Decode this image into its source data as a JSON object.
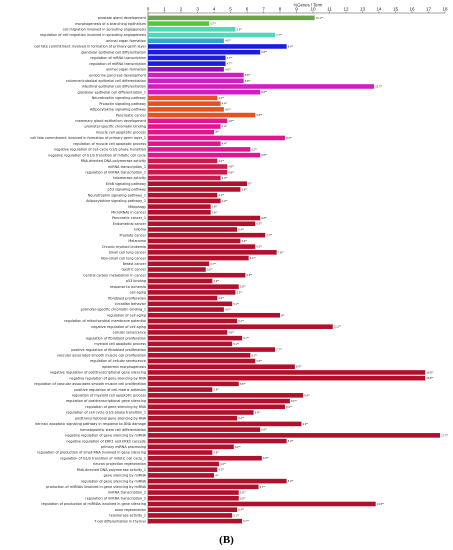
{
  "panel_label": "(B)",
  "chart_data": {
    "type": "bar",
    "orientation": "horizontal",
    "xlabel": "%Genes / Term",
    "xlim": [
      0,
      18
    ],
    "xticks": [
      0,
      1,
      2,
      3,
      4,
      5,
      6,
      7,
      8,
      9,
      10,
      11,
      12,
      13,
      14,
      15,
      16,
      17,
      18
    ],
    "grid": false,
    "legend": "none",
    "value_suffix": "**",
    "categories": [
      "prostate gland development",
      "morphogenesis of a branching epithelium",
      "cell migration involved in sprouting angiogenesis",
      "regulation of cell migration involved in sprouting angiogenesis",
      "animal organ formation",
      "cell fate commitment involved in formation of primary germ layer",
      "glandular epithelial cell differentiation",
      "regulation of mRNA transcription",
      "regulation of miRNA transcription",
      "animal organ formation",
      "endocrine pancreas development",
      "columnar/cuboidal epithelial cell differentiation",
      "intestinal epithelial cell differentiation",
      "glandular epithelial cell differentiation_1",
      "Neurotrophin signaling pathway",
      "Prolactin signaling pathway",
      "Adipocytokine signaling pathway",
      "Pancreatic cancer",
      "mammary gland epithelium development",
      "promoter-specific chromatin binding",
      "muscle cell apoptotic process",
      "cell fate commitment involved in formation of primary germ layer_1",
      "regulation of muscle cell apoptotic process",
      "negative regulation of cell cycle G1/S phase transition",
      "negative regulation of G1/S transition of mitotic cell cycle",
      "RNA-directed DNA polymerase activity",
      "miRNA transcription_1",
      "regulation of miRNA transcription_1",
      "telomerase activity",
      "ErbB signaling pathway",
      "p53 signaling pathway",
      "Neurotrophin signaling pathway_1",
      "Adipocytokine signaling pathway_1",
      "Mitophagy",
      "MicroRNAs in cancer",
      "Pancreatic cancer_1",
      "Endometrial cancer",
      "Glioma",
      "Prostate cancer",
      "Melanoma",
      "Chronic myeloid leukemia",
      "Small cell lung cancer",
      "Non-small cell lung cancer",
      "Breast cancer",
      "Gastric cancer",
      "Central carbon metabolism in cancer",
      "p53 binding",
      "response to ischemia",
      "cell aging",
      "fibroblast proliferation",
      "circadian behavior",
      "promoter-specific chromatin binding_1",
      "regulation of cell aging",
      "regulation of mitochondrial membrane potential",
      "negative regulation of cell aging",
      "cellular senescence",
      "regulation of fibroblast proliferation",
      "myeloid cell apoptotic process",
      "positive regulation of fibroblast proliferation",
      "vascular associated smooth muscle cell proliferation",
      "regulation of cellular senescence",
      "epidermis morphogenesis",
      "negative regulation of posttranscriptional gene silencing",
      "negative regulation of gene silencing by RNA",
      "regulation of vascular associated smooth muscle cell proliferation",
      "positive regulation of cell-matrix adhesion",
      "regulation of myeloid cell apoptotic process",
      "regulation of posttranscriptional gene silencing",
      "regulation of gene silencing by RNA",
      "regulation of cell cycle G1/S phase transition_1",
      "posttranscriptional gene silencing by RNA",
      "intrinsic apoptotic signaling pathway in response to DNA damage",
      "hematopoietic stem cell differentiation",
      "negative regulation of gene silencing by miRNA",
      "negative regulation of ERK1 and ERK2 cascade",
      "primary miRNA processing",
      "regulation of production of small RNA involved in gene silencing",
      "regulation of G1/S transition of mitotic cell cycle_1",
      "neuron projection regeneration",
      "RNA-directed DNA polymerase activity_1",
      "gene silencing by miRNA",
      "regulation of gene silencing by miRNA",
      "production of miRNAs involved in gene silencing by miRNA",
      "miRNA transcription_2",
      "regulation of miRNA transcription_2",
      "regulation of production of miRNAs involved in gene silencing",
      "axon regeneration",
      "telomerase activity_1",
      "T cell differentiation in thymus"
    ],
    "values": [
      10.1,
      3.7,
      5.3,
      7.7,
      4.6,
      8.4,
      6.8,
      4.7,
      4.7,
      4.6,
      5.8,
      5.8,
      13.7,
      6.8,
      4.2,
      4.4,
      4.6,
      6.5,
      4.8,
      4.4,
      4.0,
      8.3,
      4.4,
      6.2,
      6.8,
      4.2,
      4.8,
      4.8,
      4.4,
      6.0,
      5.6,
      4.2,
      4.4,
      3.8,
      3.8,
      6.8,
      6.5,
      5.4,
      7.1,
      5.6,
      6.5,
      7.8,
      6.1,
      3.7,
      3.5,
      5.9,
      3.9,
      5.5,
      5.3,
      4.2,
      5.1,
      4.6,
      8.0,
      5.4,
      11.2,
      4.8,
      5.7,
      5.1,
      7.7,
      6.2,
      6.5,
      8.9,
      16.8,
      16.8,
      5.5,
      3.9,
      9.4,
      8.6,
      8.3,
      6.4,
      5.4,
      9.3,
      6.8,
      17.7,
      8.4,
      5.2,
      3.9,
      6.9,
      4.3,
      4.2,
      4.0,
      8.4,
      6.7,
      5.5,
      5.5,
      13.8,
      5.4,
      5.1,
      5.7
    ],
    "colors": [
      "#6ba34a",
      "#52c93a",
      "#4fd8b9",
      "#4fd8b9",
      "#35a6c9",
      "#1c1ce0",
      "#1c1ce0",
      "#1c1ce0",
      "#1c1ce0",
      "#8d0fb3",
      "#d11fbf",
      "#d11fbf",
      "#d11fbf",
      "#d11fbf",
      "#e8501d",
      "#e8501d",
      "#e8501d",
      "#e8501d",
      "#e1158c",
      "#e1158c",
      "#e1158c",
      "#e1158c",
      "#e1158c",
      "#e1158c",
      "#e1158c",
      "#c9194d",
      "#c9194d",
      "#c9194d",
      "#c9194d",
      "#b0102c",
      "#b0102c",
      "#b0102c",
      "#b0102c",
      "#b0102c",
      "#b0102c",
      "#b0102c",
      "#b0102c",
      "#b0102c",
      "#b0102c",
      "#b0102c",
      "#b0102c",
      "#b0102c",
      "#b0102c",
      "#b0102c",
      "#b0102c",
      "#b0102c",
      "#b0102c",
      "#b0102c",
      "#b0102c",
      "#b0102c",
      "#b0102c",
      "#b0102c",
      "#b0102c",
      "#b0102c",
      "#b0102c",
      "#b0102c",
      "#b0102c",
      "#b0102c",
      "#b0102c",
      "#b0102c",
      "#b0102c",
      "#b0102c",
      "#b0102c",
      "#b0102c",
      "#b0102c",
      "#b0102c",
      "#b0102c",
      "#b0102c",
      "#b0102c",
      "#b0102c",
      "#b0102c",
      "#b0102c",
      "#b0102c",
      "#b0102c",
      "#b0102c",
      "#b0102c",
      "#b0102c",
      "#b0102c",
      "#b0102c",
      "#b0102c",
      "#b0102c",
      "#b0102c",
      "#b0102c",
      "#b0102c",
      "#b0102c",
      "#b0102c",
      "#b0102c",
      "#b0102c",
      "#b0102c"
    ]
  }
}
